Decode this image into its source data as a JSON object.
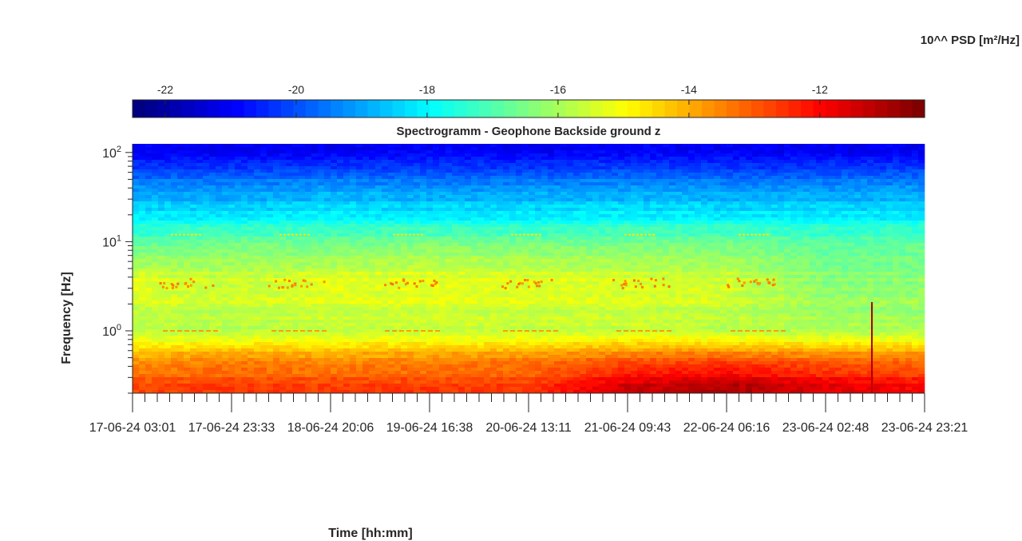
{
  "chart_data": {
    "type": "heatmap",
    "title": "Spectrogramm - Geophone Backside ground z",
    "xlabel": "Time [hh:mm]",
    "ylabel": "Frequency [Hz]",
    "y_scale": "log",
    "ylim": [
      0.2,
      125
    ],
    "y_tick_values": [
      1,
      10,
      100
    ],
    "y_tick_labels": [
      {
        "base": "10",
        "exp": "0"
      },
      {
        "base": "10",
        "exp": "1"
      },
      {
        "base": "10",
        "exp": "2"
      }
    ],
    "x_tick_labels": [
      "17-06-24  03:01",
      "17-06-24  23:33",
      "18-06-24  20:06",
      "19-06-24  16:38",
      "20-06-24  13:11",
      "21-06-24  09:43",
      "22-06-24  06:16",
      "23-06-24  02:48",
      "23-06-24  23:21"
    ],
    "colorbar": {
      "label": "10^^ PSD [m²/Hz]",
      "colormap": "jet",
      "range": [
        -22.5,
        -10.4
      ],
      "ticks": [
        -22,
        -20,
        -18,
        -16,
        -14,
        -12
      ]
    },
    "z_grid": {
      "columns": 9,
      "rows": [
        "100 Hz",
        "50 Hz",
        "20 Hz",
        "10 Hz",
        "3.5 Hz",
        "1 Hz",
        "0.5 Hz",
        "0.25 Hz"
      ],
      "values": [
        [
          -21.2,
          -21.2,
          -21.2,
          -21.1,
          -21.2,
          -21.1,
          -21.2,
          -21.2,
          -21.2
        ],
        [
          -19.6,
          -19.6,
          -19.5,
          -19.6,
          -19.6,
          -19.5,
          -19.6,
          -19.6,
          -19.5
        ],
        [
          -18.2,
          -18.3,
          -18.1,
          -18.2,
          -18.2,
          -18.1,
          -18.2,
          -18.2,
          -18.2
        ],
        [
          -16.9,
          -16.6,
          -16.7,
          -16.5,
          -16.6,
          -16.6,
          -16.6,
          -16.9,
          -16.8
        ],
        [
          -15.2,
          -15.5,
          -15.2,
          -15.1,
          -15.2,
          -15.3,
          -15.4,
          -16.3,
          -16.3
        ],
        [
          -15.8,
          -15.8,
          -15.7,
          -15.6,
          -15.7,
          -15.6,
          -15.8,
          -15.9,
          -15.9
        ],
        [
          -13.9,
          -13.7,
          -13.8,
          -13.7,
          -13.6,
          -13.2,
          -13.1,
          -13.4,
          -13.5
        ],
        [
          -12.8,
          -12.6,
          -12.7,
          -12.6,
          -12.6,
          -11.4,
          -11.0,
          -11.6,
          -12.0
        ]
      ]
    }
  }
}
